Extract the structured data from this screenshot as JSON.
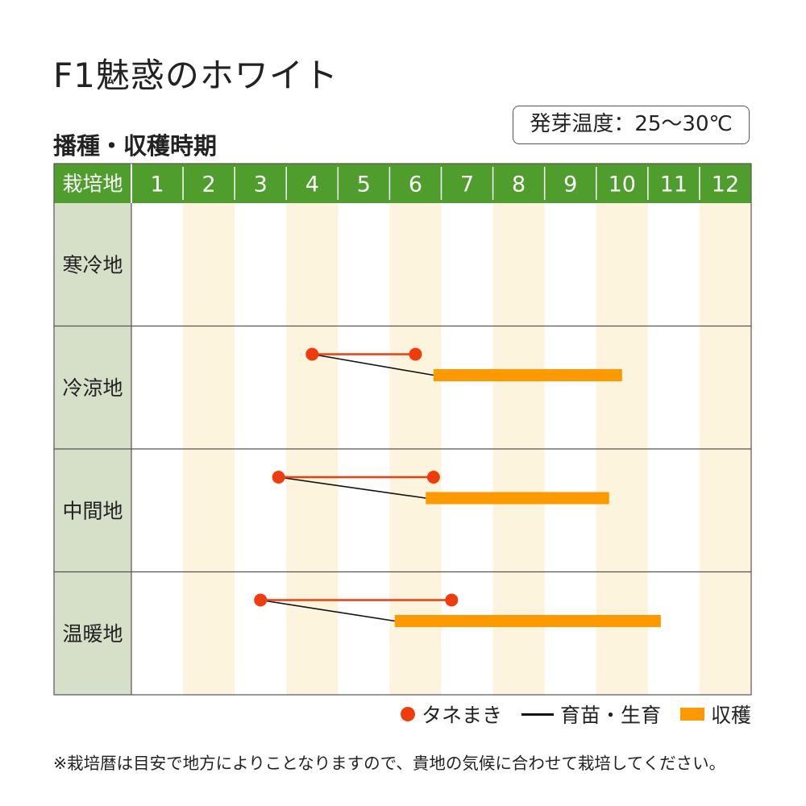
{
  "title": "F1魅惑のホワイト",
  "subtitle": "播種・収穫時期",
  "temperature_badge": "発芽温度：25〜30℃",
  "footnote": "※栽培暦は目安で地方によりことなりますので、貴地の気候に合わせて栽培してください。",
  "legend": {
    "sowing": "タネまき",
    "nursery": "育苗・生育",
    "harvest": "収穫"
  },
  "colors": {
    "header_green": "#4e9d2d",
    "row_label_bg": "#d6dfc7",
    "stripe": "#fcf4dc",
    "sowing": "#f03c0a",
    "harvest": "#ff9900",
    "nursery": "#111111"
  },
  "chart_data": {
    "type": "table",
    "header_label": "栽培地",
    "months": [
      "1",
      "2",
      "3",
      "4",
      "5",
      "6",
      "7",
      "8",
      "9",
      "10",
      "11",
      "12"
    ],
    "month_range": [
      1,
      13
    ],
    "rows": [
      {
        "name": "寒冷地",
        "sowing": null,
        "harvest": null
      },
      {
        "name": "冷涼地",
        "sowing": [
          4.5,
          6.5
        ],
        "harvest": [
          6.85,
          10.5
        ]
      },
      {
        "name": "中間地",
        "sowing": [
          3.85,
          6.85
        ],
        "harvest": [
          6.7,
          10.25
        ]
      },
      {
        "name": "温暖地",
        "sowing": [
          3.5,
          7.2
        ],
        "harvest": [
          6.1,
          11.25
        ]
      }
    ]
  }
}
